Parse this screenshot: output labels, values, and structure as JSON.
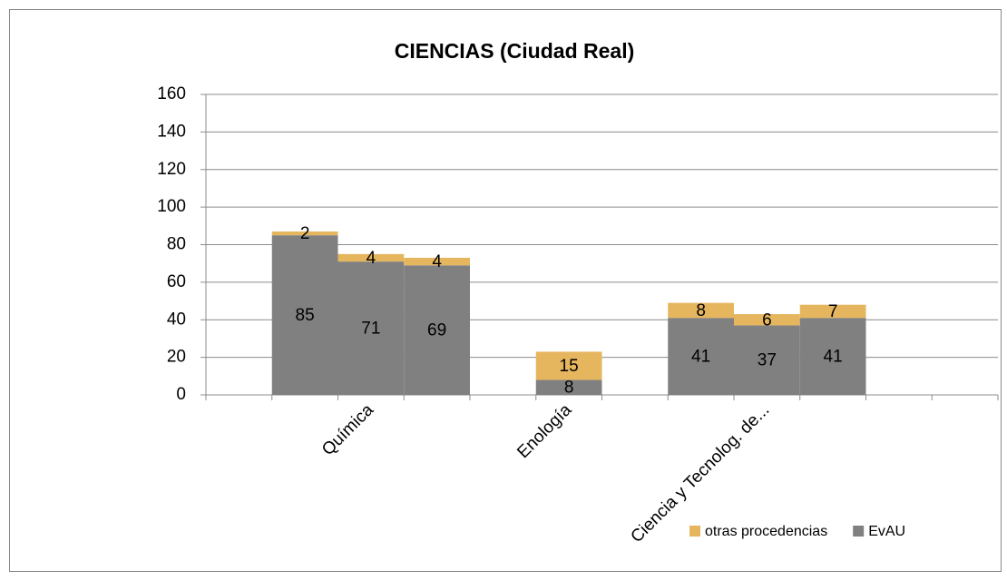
{
  "chart_data": {
    "type": "stacked_bar",
    "title": "CIENCIAS (Ciudad Real)",
    "categories": [
      null,
      null,
      "Química",
      null,
      null,
      "Enología",
      null,
      null,
      "Ciencia y Tecnolog. de...",
      null,
      null,
      null
    ],
    "series": [
      {
        "name": "EvAU",
        "color": "#808080",
        "values": [
          null,
          85,
          71,
          69,
          null,
          8,
          null,
          41,
          37,
          41,
          null,
          null
        ]
      },
      {
        "name": "otras procedencias",
        "color": "#e6b65e",
        "values": [
          null,
          2,
          4,
          4,
          null,
          15,
          null,
          8,
          6,
          7,
          null,
          null
        ]
      }
    ],
    "ylim": [
      0,
      160
    ],
    "yticks": [
      0,
      20,
      40,
      60,
      80,
      100,
      120,
      140,
      160
    ],
    "grid": true,
    "legend": "bottom-right"
  }
}
